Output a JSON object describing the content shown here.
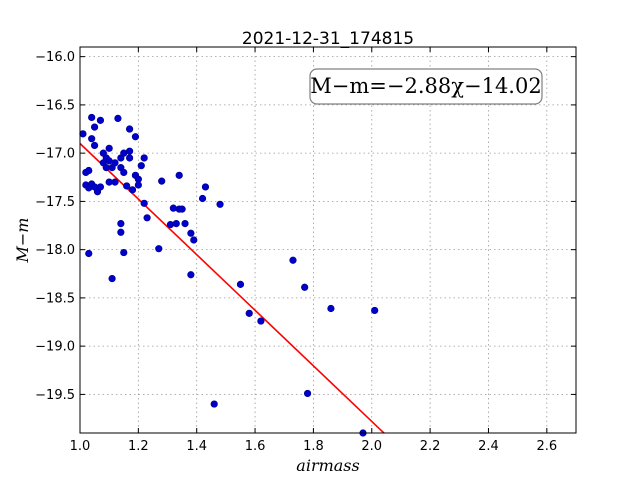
{
  "chart_data": {
    "type": "scatter",
    "title": "2021-12-31_174815",
    "xlabel": "airmass",
    "ylabel": "M−m",
    "xlim": [
      1.0,
      2.7
    ],
    "ylim": [
      -19.9,
      -15.9
    ],
    "y_inverted": true,
    "grid": true,
    "x_ticks": [
      "1.0",
      "1.2",
      "1.4",
      "1.6",
      "1.8",
      "2.0",
      "2.2",
      "2.4",
      "2.6"
    ],
    "y_ticks": [
      "−16.0",
      "−16.5",
      "−17.0",
      "−17.5",
      "−18.0",
      "−18.5",
      "−19.0",
      "−19.5"
    ],
    "fit": {
      "label": "M−m=−2.88χ−14.02",
      "slope": -2.88,
      "intercept": -14.02,
      "color": "#ff0000"
    },
    "legend_position": "top-right",
    "point_color": "#0000cc",
    "series": [
      {
        "points": [
          [
            1.01,
            -16.8
          ],
          [
            1.02,
            -17.2
          ],
          [
            1.03,
            -17.18
          ],
          [
            1.02,
            -17.33
          ],
          [
            1.03,
            -17.36
          ],
          [
            1.04,
            -17.32
          ],
          [
            1.05,
            -17.35
          ],
          [
            1.06,
            -17.4
          ],
          [
            1.07,
            -17.35
          ],
          [
            1.03,
            -18.04
          ],
          [
            1.04,
            -16.63
          ],
          [
            1.05,
            -16.73
          ],
          [
            1.04,
            -16.85
          ],
          [
            1.05,
            -16.92
          ],
          [
            1.07,
            -16.66
          ],
          [
            1.08,
            -17.0
          ],
          [
            1.08,
            -17.1
          ],
          [
            1.09,
            -17.05
          ],
          [
            1.09,
            -17.15
          ],
          [
            1.1,
            -17.08
          ],
          [
            1.1,
            -16.95
          ],
          [
            1.1,
            -17.3
          ],
          [
            1.11,
            -17.15
          ],
          [
            1.12,
            -17.1
          ],
          [
            1.12,
            -17.3
          ],
          [
            1.13,
            -16.64
          ],
          [
            1.14,
            -17.05
          ],
          [
            1.14,
            -17.15
          ],
          [
            1.15,
            -17.0
          ],
          [
            1.15,
            -17.2
          ],
          [
            1.16,
            -17.34
          ],
          [
            1.17,
            -16.75
          ],
          [
            1.17,
            -16.98
          ],
          [
            1.17,
            -17.05
          ],
          [
            1.18,
            -17.38
          ],
          [
            1.19,
            -16.83
          ],
          [
            1.19,
            -17.23
          ],
          [
            1.2,
            -17.27
          ],
          [
            1.2,
            -17.33
          ],
          [
            1.21,
            -17.13
          ],
          [
            1.22,
            -17.05
          ],
          [
            1.22,
            -17.52
          ],
          [
            1.23,
            -17.67
          ],
          [
            1.11,
            -18.3
          ],
          [
            1.14,
            -17.73
          ],
          [
            1.14,
            -17.82
          ],
          [
            1.15,
            -18.03
          ],
          [
            1.27,
            -17.99
          ],
          [
            1.28,
            -17.29
          ],
          [
            1.31,
            -17.74
          ],
          [
            1.32,
            -17.57
          ],
          [
            1.33,
            -17.73
          ],
          [
            1.34,
            -17.23
          ],
          [
            1.34,
            -17.58
          ],
          [
            1.35,
            -17.58
          ],
          [
            1.36,
            -17.73
          ],
          [
            1.38,
            -17.83
          ],
          [
            1.39,
            -17.9
          ],
          [
            1.38,
            -18.26
          ],
          [
            1.42,
            -17.47
          ],
          [
            1.43,
            -17.35
          ],
          [
            1.48,
            -17.53
          ],
          [
            1.55,
            -18.36
          ],
          [
            1.58,
            -18.66
          ],
          [
            1.62,
            -18.74
          ],
          [
            1.73,
            -18.11
          ],
          [
            1.77,
            -18.39
          ],
          [
            1.46,
            -19.6
          ],
          [
            1.78,
            -19.49
          ],
          [
            1.86,
            -18.61
          ],
          [
            2.01,
            -18.63
          ],
          [
            1.97,
            -19.9
          ]
        ]
      }
    ]
  }
}
